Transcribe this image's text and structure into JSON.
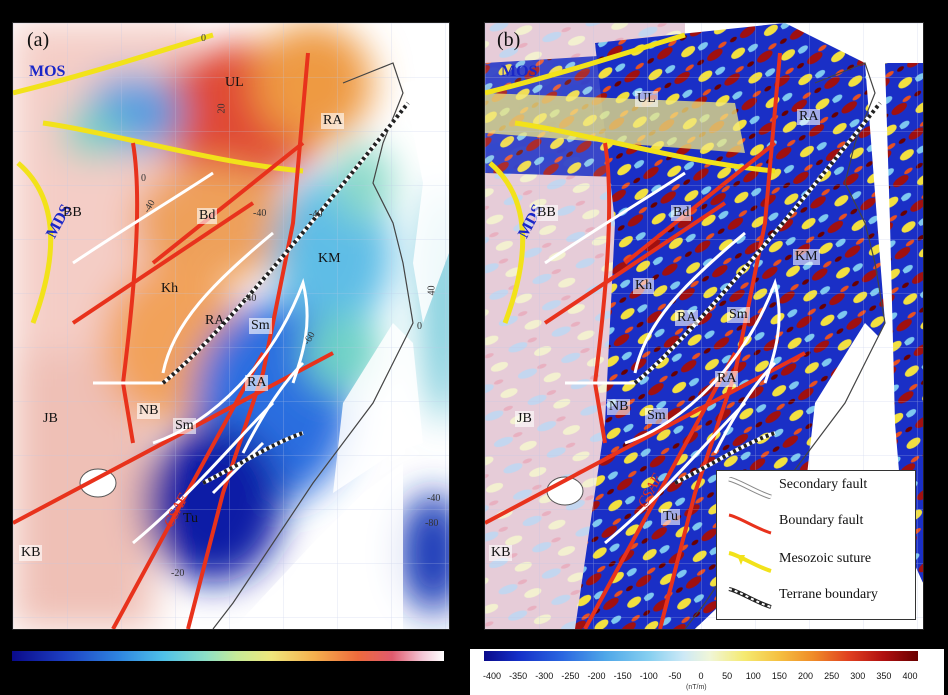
{
  "panels": {
    "a": {
      "label": "(a)",
      "terranes": {
        "MOS": "MOS",
        "MDS": "MDS",
        "UL": "UL",
        "RA1": "RA",
        "BB": "BB",
        "Bd": "Bd",
        "KM": "KM",
        "Kh": "Kh",
        "RA2": "RA",
        "Sm1": "Sm",
        "RA3": "RA",
        "JB": "JB",
        "NB": "NB",
        "Sm2": "Sm",
        "CSAF": "CSAF",
        "Tu": "Tu",
        "KB": "KB"
      },
      "contours": [
        "0",
        "20",
        "0",
        "-40",
        "-40",
        "-40",
        "40",
        "0",
        "-40",
        "-60",
        "-40",
        "-80",
        "-20"
      ]
    },
    "b": {
      "label": "(b)",
      "terranes": {
        "MOS": "MOS",
        "MDS": "MDS",
        "UL": "UL",
        "RA1": "RA",
        "BB": "BB",
        "Bd": "Bd",
        "KM": "KM",
        "Kh": "Kh",
        "RA2": "RA",
        "Sm1": "Sm",
        "RA3": "RA",
        "JB": "JB",
        "NB": "NB",
        "Sm2": "Sm",
        "CSAF": "CSAF",
        "Tu": "Tu",
        "KB": "KB"
      }
    }
  },
  "legend": {
    "secondary_fault": "Secondary fault",
    "boundary_fault": "Boundary fault",
    "mesozoic_suture": "Mesozoic suture",
    "terrane_boundary": "Terrane boundary"
  },
  "colorbar_b": {
    "ticks": [
      "-400",
      "-350",
      "-300",
      "-250",
      "-200",
      "-150",
      "-100",
      "-50",
      "0",
      "50",
      "100",
      "150",
      "200",
      "250",
      "300",
      "350",
      "400"
    ],
    "unit": "(nT/m)"
  },
  "colors": {
    "boundary_fault": "#e8321c",
    "secondary_fault": "#ffffff",
    "mesozoic_suture": "#f2e21a",
    "label_blue": "#1a27c8"
  }
}
